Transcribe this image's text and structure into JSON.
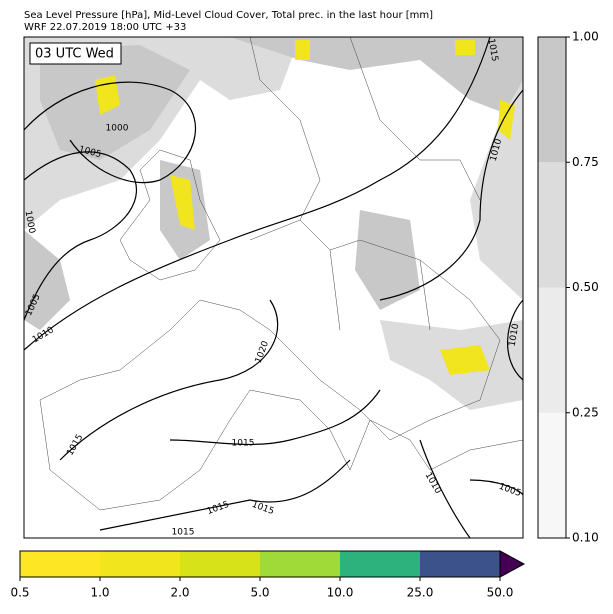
{
  "header": {
    "title": "Sea Level Pressure [hPa], Mid-Level Cloud Cover, Total prec. in the last hour [mm]",
    "subtitle": "WRF 22.07.2019 18:00 UTC +33"
  },
  "time_label": "03 UTC Wed",
  "contour_labels": [
    "1000",
    "1005",
    "1010",
    "1015",
    "1000",
    "1005",
    "1010",
    "1020",
    "1015",
    "1015",
    "1010",
    "1005",
    "1015",
    "1015",
    "1015",
    "1010"
  ],
  "cloud_colorbar": {
    "ticks": [
      "0.10",
      "0.25",
      "0.50",
      "0.75",
      "1.00"
    ],
    "colors": [
      "#f7f7f7",
      "#ebebeb",
      "#dcdcdc",
      "#c8c8c8"
    ]
  },
  "precip_colorbar": {
    "ticks": [
      "0.5",
      "1.0",
      "2.0",
      "5.0",
      "10.0",
      "25.0",
      "50.0"
    ],
    "colors": [
      "#fde725",
      "#f1e51d",
      "#d8e219",
      "#a0da39",
      "#2db27d",
      "#3b528b"
    ],
    "extend_color": "#440154"
  }
}
